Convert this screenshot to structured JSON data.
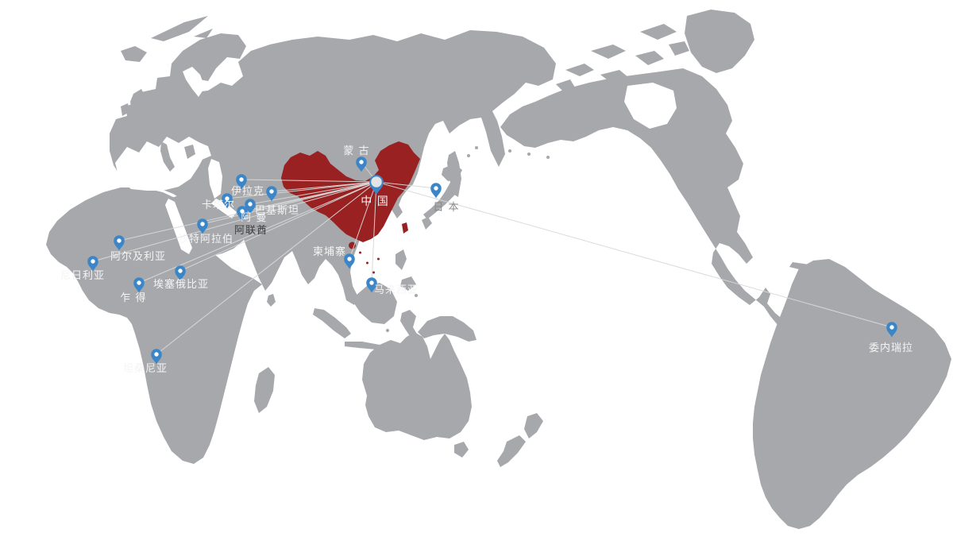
{
  "map": {
    "colors": {
      "land": "#a6a8ab",
      "ocean": "#ffffff",
      "highlight": "#992121",
      "route": "#d9d9d9",
      "pin": "#3b86c8",
      "label_light": "#f4f4f4",
      "label_dark": "#3d3d3d",
      "label_muted": "#8a8a8a"
    },
    "hub": {
      "id": "china",
      "name": "中 国",
      "pin": [
        474,
        229
      ],
      "label": [
        472,
        258
      ],
      "label_style": "light",
      "label_size": 14
    },
    "locations": [
      {
        "id": "mongolia",
        "name": "蒙 古",
        "pin": [
          455,
          204
        ],
        "label": [
          449,
          194
        ],
        "label_style": "light",
        "label_size": 13
      },
      {
        "id": "japan",
        "name": "日 本",
        "pin": [
          549,
          237
        ],
        "label": [
          562,
          265
        ],
        "label_style": "muted",
        "label_size": 13
      },
      {
        "id": "iraq",
        "name": "伊拉克",
        "pin": [
          304,
          226
        ],
        "label": [
          312,
          245
        ],
        "label_style": "light",
        "label_size": 13
      },
      {
        "id": "pakistan",
        "name": "巴基斯坦",
        "pin": [
          342,
          241
        ],
        "label": [
          349,
          269
        ],
        "label_style": "light",
        "label_size": 13
      },
      {
        "id": "qatar",
        "name": "卡塔尔",
        "pin": [
          286,
          250
        ],
        "label": [
          275,
          262
        ],
        "label_style": "light",
        "label_size": 13
      },
      {
        "id": "oman",
        "name": "阿 曼",
        "pin": [
          315,
          257
        ],
        "label": [
          320,
          278
        ],
        "label_style": "light",
        "label_size": 13
      },
      {
        "id": "uae",
        "name": "阿联酋",
        "pin": [
          305,
          266
        ],
        "label": [
          316,
          294
        ],
        "label_style": "dark",
        "label_size": 13
      },
      {
        "id": "saudi-arabia",
        "name": "沙特阿拉伯",
        "pin": [
          255,
          282
        ],
        "label": [
          259,
          305
        ],
        "label_style": "light",
        "label_size": 13
      },
      {
        "id": "algeria",
        "name": "阿尔及利亚",
        "pin": [
          150,
          303
        ],
        "label": [
          174,
          327
        ],
        "label_style": "light",
        "label_size": 13
      },
      {
        "id": "nigeria",
        "name": "尼日利亚",
        "pin": [
          117,
          329
        ],
        "label": [
          104,
          351
        ],
        "label_style": "light",
        "label_size": 13
      },
      {
        "id": "ethiopia",
        "name": "埃塞俄比亚",
        "pin": [
          227,
          341
        ],
        "label": [
          228,
          362
        ],
        "label_style": "light",
        "label_size": 13
      },
      {
        "id": "chad",
        "name": "乍 得",
        "pin": [
          175,
          356
        ],
        "label": [
          168,
          379
        ],
        "label_style": "light",
        "label_size": 13
      },
      {
        "id": "tanzania",
        "name": "坦桑尼亚",
        "pin": [
          197,
          446
        ],
        "label": [
          183,
          468
        ],
        "label_style": "light",
        "label_size": 13
      },
      {
        "id": "cambodia",
        "name": "柬埔寨",
        "pin": [
          440,
          326
        ],
        "label": [
          415,
          321
        ],
        "label_style": "light",
        "label_size": 13
      },
      {
        "id": "malaysia",
        "name": "马来西亚",
        "pin": [
          468,
          356
        ],
        "label": [
          499,
          369
        ],
        "label_style": "light",
        "label_size": 13
      },
      {
        "id": "venezuela",
        "name": "委内瑞拉",
        "pin": [
          1123,
          412
        ],
        "label": [
          1122,
          442
        ],
        "label_style": "light",
        "label_size": 13
      }
    ]
  }
}
